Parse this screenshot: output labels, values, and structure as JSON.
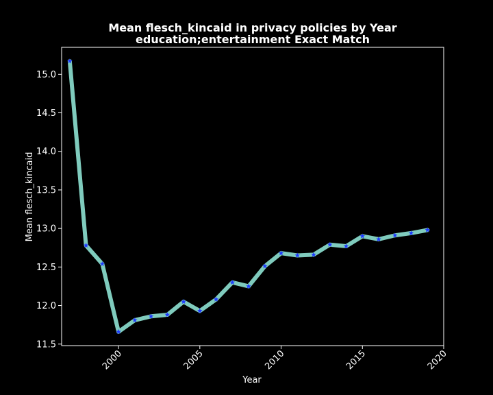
{
  "chart_data": {
    "type": "line",
    "title": "Mean flesch_kincaid in privacy policies by Year",
    "subtitle": "education;entertainment Exact Match",
    "xlabel": "Year",
    "ylabel": "Mean flesch_kincaid",
    "xlim": [
      1996.5,
      2020.0
    ],
    "ylim": [
      11.48,
      15.35
    ],
    "x_ticks": [
      2000,
      2005,
      2010,
      2015,
      2020
    ],
    "y_ticks": [
      11.5,
      12.0,
      12.5,
      13.0,
      13.5,
      14.0,
      14.5,
      15.0
    ],
    "x_tick_labels": [
      "2000",
      "2005",
      "2010",
      "2015",
      "2020"
    ],
    "y_tick_labels": [
      "11.5",
      "12.0",
      "12.5",
      "13.0",
      "13.5",
      "14.0",
      "14.5",
      "15.0"
    ],
    "grid": false,
    "series": [
      {
        "line_color": "#7fcbbd",
        "marker_color": "#1f3bff",
        "marker": "star",
        "x": [
          1997,
          1998,
          1999,
          2000,
          2001,
          2002,
          2003,
          2004,
          2005,
          2006,
          2007,
          2008,
          2009,
          2010,
          2011,
          2012,
          2013,
          2014,
          2015,
          2016,
          2017,
          2018,
          2019
        ],
        "values": [
          15.17,
          12.78,
          12.54,
          11.66,
          11.81,
          11.86,
          11.88,
          12.05,
          11.93,
          12.08,
          12.3,
          12.25,
          12.51,
          12.68,
          12.65,
          12.66,
          12.79,
          12.77,
          12.9,
          12.86,
          12.91,
          12.94,
          12.98
        ]
      }
    ]
  }
}
